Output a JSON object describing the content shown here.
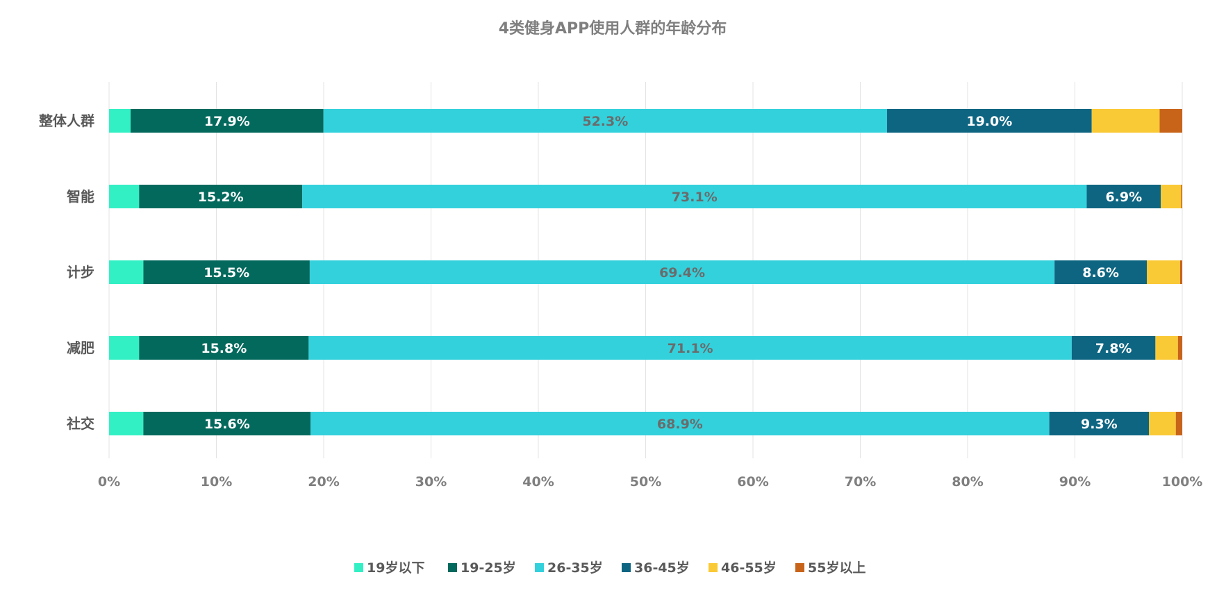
{
  "chart_data": {
    "type": "bar",
    "orientation": "horizontal",
    "stacked": "percent",
    "title": "4类健身APP使用人群的年龄分布",
    "categories": [
      "整体人群",
      "智能",
      "计步",
      "减肥",
      "社交"
    ],
    "series": [
      {
        "name": "19岁以下",
        "color": "#33f0c4",
        "values": [
          2.0,
          2.8,
          3.2,
          2.8,
          3.2
        ],
        "labels": [
          "",
          "",
          "",
          "",
          ""
        ],
        "label_color": "#ffffff"
      },
      {
        "name": "19-25岁",
        "color": "#03695d",
        "values": [
          17.9,
          15.2,
          15.5,
          15.8,
          15.6
        ],
        "labels": [
          "17.9%",
          "15.2%",
          "15.5%",
          "15.8%",
          "15.6%"
        ],
        "label_color": "#ffffff"
      },
      {
        "name": "26-35岁",
        "color": "#33d1dc",
        "values": [
          52.3,
          73.1,
          69.4,
          71.1,
          68.9
        ],
        "labels": [
          "52.3%",
          "73.1%",
          "69.4%",
          "71.1%",
          "68.9%"
        ],
        "label_color": "#6b6b6b"
      },
      {
        "name": "36-45岁",
        "color": "#0e6582",
        "values": [
          19.0,
          6.9,
          8.6,
          7.8,
          9.3
        ],
        "labels": [
          "19.0%",
          "6.9%",
          "8.6%",
          "7.8%",
          "9.3%"
        ],
        "label_color": "#ffffff"
      },
      {
        "name": "46-55岁",
        "color": "#fac936",
        "values": [
          6.3,
          1.9,
          3.1,
          2.1,
          2.5
        ],
        "labels": [
          "",
          "",
          "",
          "",
          ""
        ],
        "label_color": "#ffffff"
      },
      {
        "name": "55岁以上",
        "color": "#c8641a",
        "values": [
          2.1,
          0.1,
          0.2,
          0.4,
          0.6
        ],
        "labels": [
          "",
          "",
          "",
          "",
          ""
        ],
        "label_color": "#ffffff"
      }
    ],
    "xlim": [
      0,
      100
    ],
    "xticks": [
      "0%",
      "10%",
      "20%",
      "30%",
      "40%",
      "50%",
      "60%",
      "70%",
      "80%",
      "90%",
      "100%"
    ],
    "grid": "vertical",
    "legend": "bottom"
  }
}
